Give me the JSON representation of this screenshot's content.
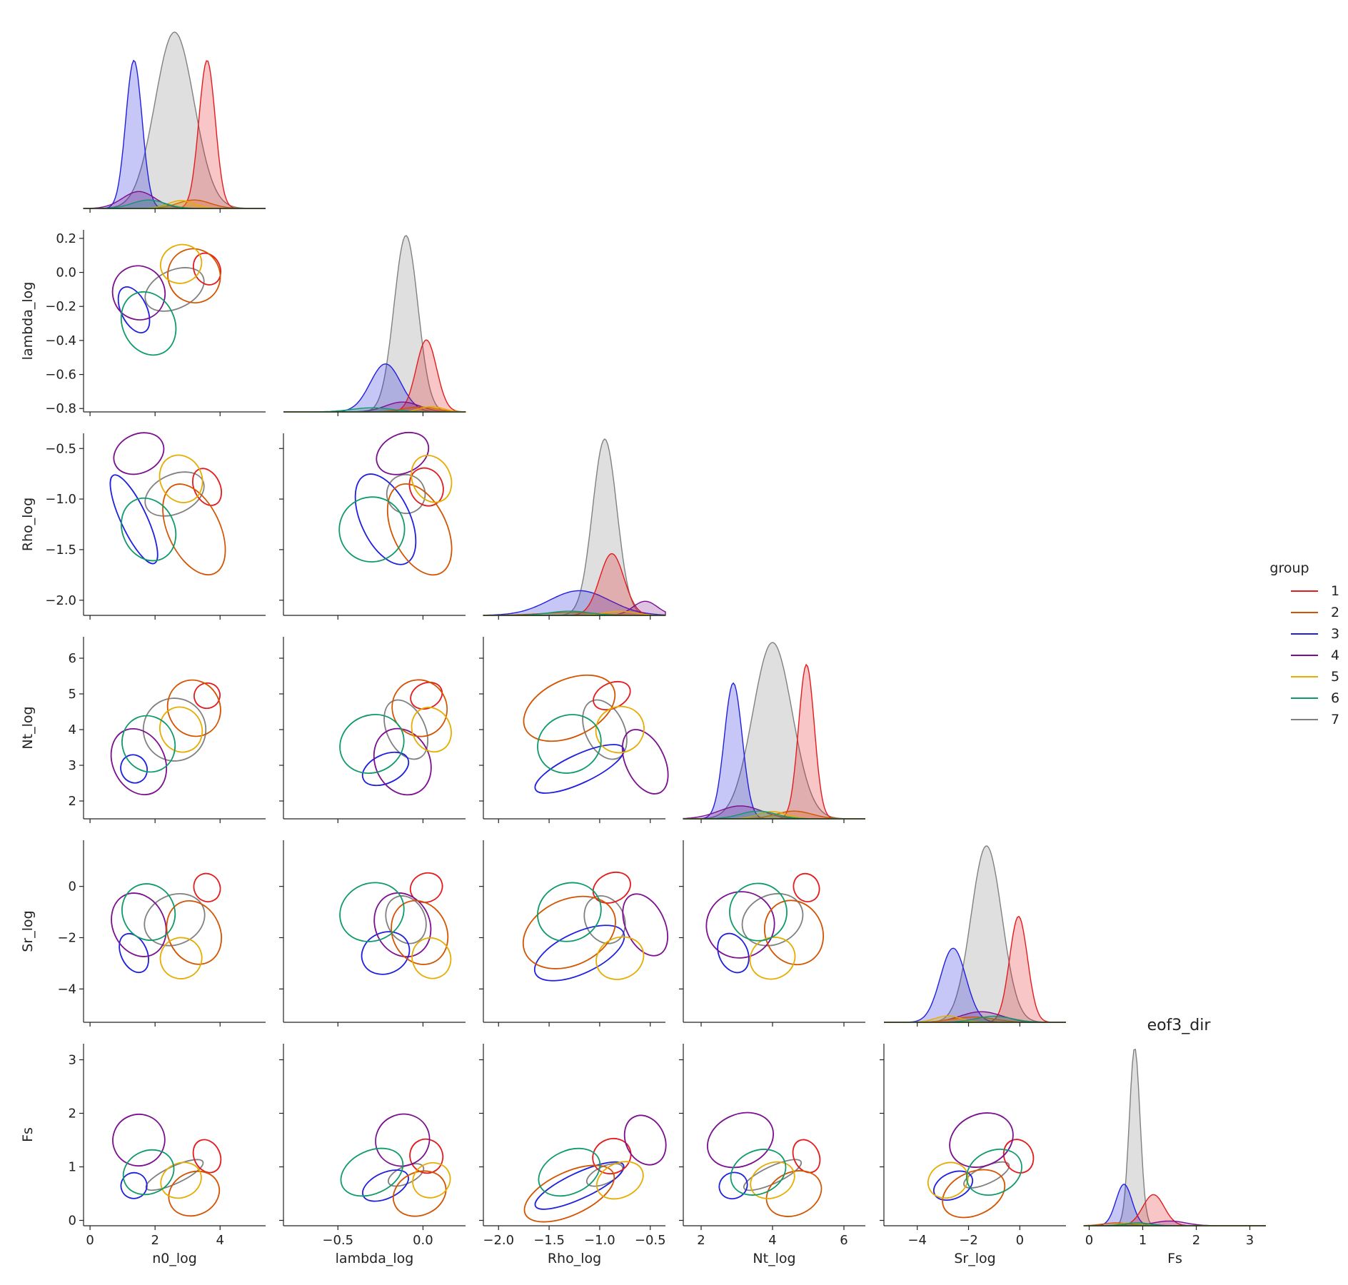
{
  "chart_data": {
    "type": "pairplot",
    "title": "eof3_dir",
    "variables": [
      "n0_log",
      "lambda_log",
      "Rho_log",
      "Nt_log",
      "Sr_log",
      "Fs"
    ],
    "ticks": {
      "n0_log": [
        0,
        2,
        4
      ],
      "lambda_log": [
        -0.5,
        0.0
      ],
      "Rho_log": [
        -2.0,
        -1.5,
        -1.0,
        -0.5
      ],
      "Nt_log": [
        2,
        4,
        6
      ],
      "Sr_log": [
        -4,
        -2,
        0
      ],
      "Fs": [
        0,
        1,
        2,
        3
      ]
    },
    "tick_labels": {
      "n0_log": [
        "0",
        "2",
        "4"
      ],
      "lambda_log": [
        "−0.5",
        "0.0"
      ],
      "Rho_log": [
        "−2.0",
        "−1.5",
        "−1.0",
        "−0.5"
      ],
      "Nt_log": [
        "2",
        "4",
        "6"
      ],
      "Sr_log": [
        "−4",
        "−2",
        "0"
      ],
      "Fs": [
        "0",
        "1",
        "2",
        "3"
      ]
    },
    "row_tick_labels": {
      "lambda_log": [
        "0.2",
        "0.0",
        "−0.2",
        "−0.4",
        "−0.6",
        "−0.8"
      ],
      "lambda_log_values": [
        0.2,
        0.0,
        -0.2,
        -0.4,
        -0.6,
        -0.8
      ],
      "Rho_log": [
        "−0.5",
        "−1.0",
        "−1.5",
        "−2.0"
      ],
      "Rho_log_values": [
        -0.5,
        -1.0,
        -1.5,
        -2.0
      ],
      "Nt_log": [
        "6",
        "5",
        "4",
        "3",
        "2"
      ],
      "Nt_log_values": [
        6,
        5,
        4,
        3,
        2
      ],
      "Sr_log": [
        "0",
        "−2",
        "−4"
      ],
      "Sr_log_values": [
        0,
        -2,
        -4
      ],
      "Fs": [
        "3",
        "2",
        "1",
        "0"
      ],
      "Fs_values": [
        3,
        2,
        1,
        0
      ]
    },
    "ranges": {
      "n0_log": [
        -0.2,
        5.4
      ],
      "lambda_log": [
        -0.82,
        0.25
      ],
      "Rho_log": [
        -2.15,
        -0.35
      ],
      "Nt_log": [
        1.5,
        6.6
      ],
      "Sr_log": [
        -5.3,
        1.8
      ],
      "Fs": [
        -0.1,
        3.3
      ]
    },
    "legend": {
      "title": "group",
      "placement": "right",
      "entries": [
        {
          "label": "1",
          "color": "#e41a1c"
        },
        {
          "label": "2",
          "color": "#d35400"
        },
        {
          "label": "3",
          "color": "#1f1fe0"
        },
        {
          "label": "4",
          "color": "#7b0f8f"
        },
        {
          "label": "5",
          "color": "#e6ac00"
        },
        {
          "label": "6",
          "color": "#0f9a6a"
        },
        {
          "label": "7",
          "color": "#808080"
        }
      ]
    },
    "groups": {
      "1": {
        "n0_log": [
          3.6,
          0.25
        ],
        "lambda_log": [
          0.02,
          0.06
        ],
        "Rho_log": [
          -0.88,
          0.12
        ],
        "Nt_log": [
          4.95,
          0.22
        ],
        "Sr_log": [
          -0.05,
          0.35
        ],
        "Fs": [
          1.2,
          0.2
        ],
        "weight": 0.35
      },
      "2": {
        "n0_log": [
          3.2,
          0.5
        ],
        "lambda_log": [
          -0.02,
          0.1
        ],
        "Rho_log": [
          -1.3,
          0.3
        ],
        "Nt_log": [
          4.6,
          0.5
        ],
        "Sr_log": [
          -1.8,
          0.8
        ],
        "Fs": [
          0.5,
          0.25
        ],
        "weight": 0.04
      },
      "3": {
        "n0_log": [
          1.35,
          0.25
        ],
        "lambda_log": [
          -0.22,
          0.09
        ],
        "Rho_log": [
          -1.2,
          0.3
        ],
        "Nt_log": [
          2.9,
          0.25
        ],
        "Sr_log": [
          -2.6,
          0.5
        ],
        "Fs": [
          0.65,
          0.15
        ],
        "weight": 0.35
      },
      "4": {
        "n0_log": [
          1.5,
          0.5
        ],
        "lambda_log": [
          -0.12,
          0.1
        ],
        "Rho_log": [
          -0.55,
          0.12
        ],
        "Nt_log": [
          3.1,
          0.6
        ],
        "Sr_log": [
          -1.5,
          0.8
        ],
        "Fs": [
          1.5,
          0.3
        ],
        "weight": 0.08
      },
      "5": {
        "n0_log": [
          2.8,
          0.4
        ],
        "lambda_log": [
          0.05,
          0.07
        ],
        "Rho_log": [
          -0.8,
          0.15
        ],
        "Nt_log": [
          4.0,
          0.4
        ],
        "Sr_log": [
          -2.8,
          0.5
        ],
        "Fs": [
          0.75,
          0.2
        ],
        "weight": 0.03
      },
      "6": {
        "n0_log": [
          1.8,
          0.5
        ],
        "lambda_log": [
          -0.3,
          0.12
        ],
        "Rho_log": [
          -1.3,
          0.2
        ],
        "Nt_log": [
          3.6,
          0.5
        ],
        "Sr_log": [
          -1.0,
          0.7
        ],
        "Fs": [
          0.9,
          0.25
        ],
        "weight": 0.04
      },
      "7": {
        "n0_log": [
          2.6,
          0.6
        ],
        "lambda_log": [
          -0.1,
          0.07
        ],
        "Rho_log": [
          -0.95,
          0.12
        ],
        "Nt_log": [
          4.0,
          0.55
        ],
        "Sr_log": [
          -1.3,
          0.6
        ],
        "Fs": [
          0.85,
          0.1
        ],
        "weight": 1.0
      }
    }
  }
}
